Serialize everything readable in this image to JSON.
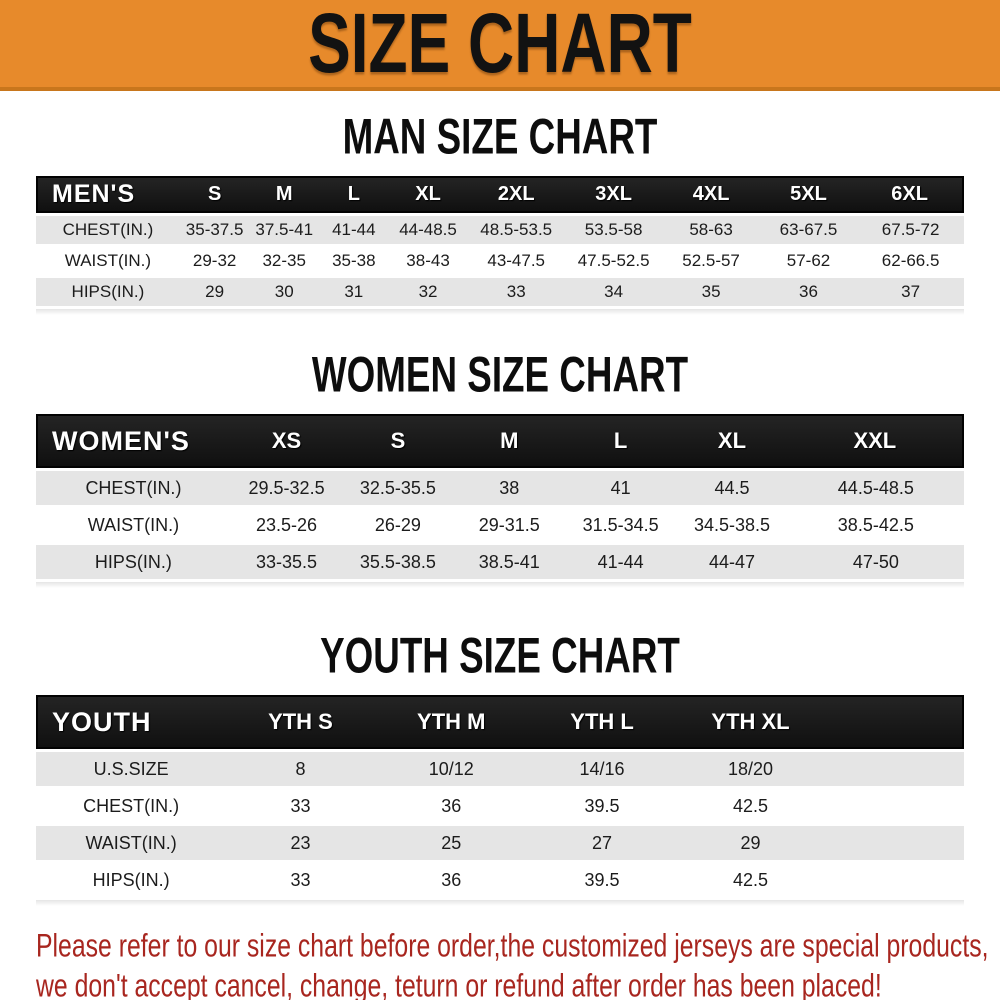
{
  "banner": {
    "title": "SIZE CHART"
  },
  "colors": {
    "banner_bg": "#e78a2b",
    "banner_border": "#c8761c",
    "header_bar": "#191919",
    "stripe": "#e5e5e5",
    "footer_text": "#a8261f"
  },
  "sections": [
    {
      "id": "men",
      "title": "MAN SIZE CHART",
      "header": [
        "MEN'S",
        "S",
        "M",
        "L",
        "XL",
        "2XL",
        "3XL",
        "4XL",
        "5XL",
        "6XL"
      ],
      "rows": [
        {
          "label": "CHEST(IN.)",
          "values": [
            "35-37.5",
            "37.5-41",
            "41-44",
            "44-48.5",
            "48.5-53.5",
            "53.5-58",
            "58-63",
            "63-67.5",
            "67.5-72"
          ]
        },
        {
          "label": "WAIST(IN.)",
          "values": [
            "29-32",
            "32-35",
            "35-38",
            "38-43",
            "43-47.5",
            "47.5-52.5",
            "52.5-57",
            "57-62",
            "62-66.5"
          ]
        },
        {
          "label": "HIPS(IN.)",
          "values": [
            "29",
            "30",
            "31",
            "32",
            "33",
            "34",
            "35",
            "36",
            "37"
          ]
        }
      ]
    },
    {
      "id": "women",
      "title": "WOMEN SIZE CHART",
      "header": [
        "WOMEN'S",
        "XS",
        "S",
        "M",
        "L",
        "XL",
        "XXL"
      ],
      "rows": [
        {
          "label": "CHEST(IN.)",
          "values": [
            "29.5-32.5",
            "32.5-35.5",
            "38",
            "41",
            "44.5",
            "44.5-48.5"
          ]
        },
        {
          "label": "WAIST(IN.)",
          "values": [
            "23.5-26",
            "26-29",
            "29-31.5",
            "31.5-34.5",
            "34.5-38.5",
            "38.5-42.5"
          ]
        },
        {
          "label": "HIPS(IN.)",
          "values": [
            "33-35.5",
            "35.5-38.5",
            "38.5-41",
            "41-44",
            "44-47",
            "47-50"
          ]
        }
      ]
    },
    {
      "id": "youth",
      "title": "YOUTH SIZE CHART",
      "header": [
        "YOUTH",
        "YTH S",
        "YTH M",
        "YTH L",
        "YTH XL"
      ],
      "rows": [
        {
          "label": "U.S.SIZE",
          "values": [
            "8",
            "10/12",
            "14/16",
            "18/20"
          ]
        },
        {
          "label": "CHEST(IN.)",
          "values": [
            "33",
            "36",
            "39.5",
            "42.5"
          ]
        },
        {
          "label": "WAIST(IN.)",
          "values": [
            "23",
            "25",
            "27",
            "29"
          ]
        },
        {
          "label": "HIPS(IN.)",
          "values": [
            "33",
            "36",
            "39.5",
            "42.5"
          ]
        }
      ]
    }
  ],
  "footer": {
    "line1": "Please refer to our size chart before order,the customized jerseys are special products,",
    "line2": "we don't accept cancel, change, teturn or refund after order has been placed!"
  }
}
